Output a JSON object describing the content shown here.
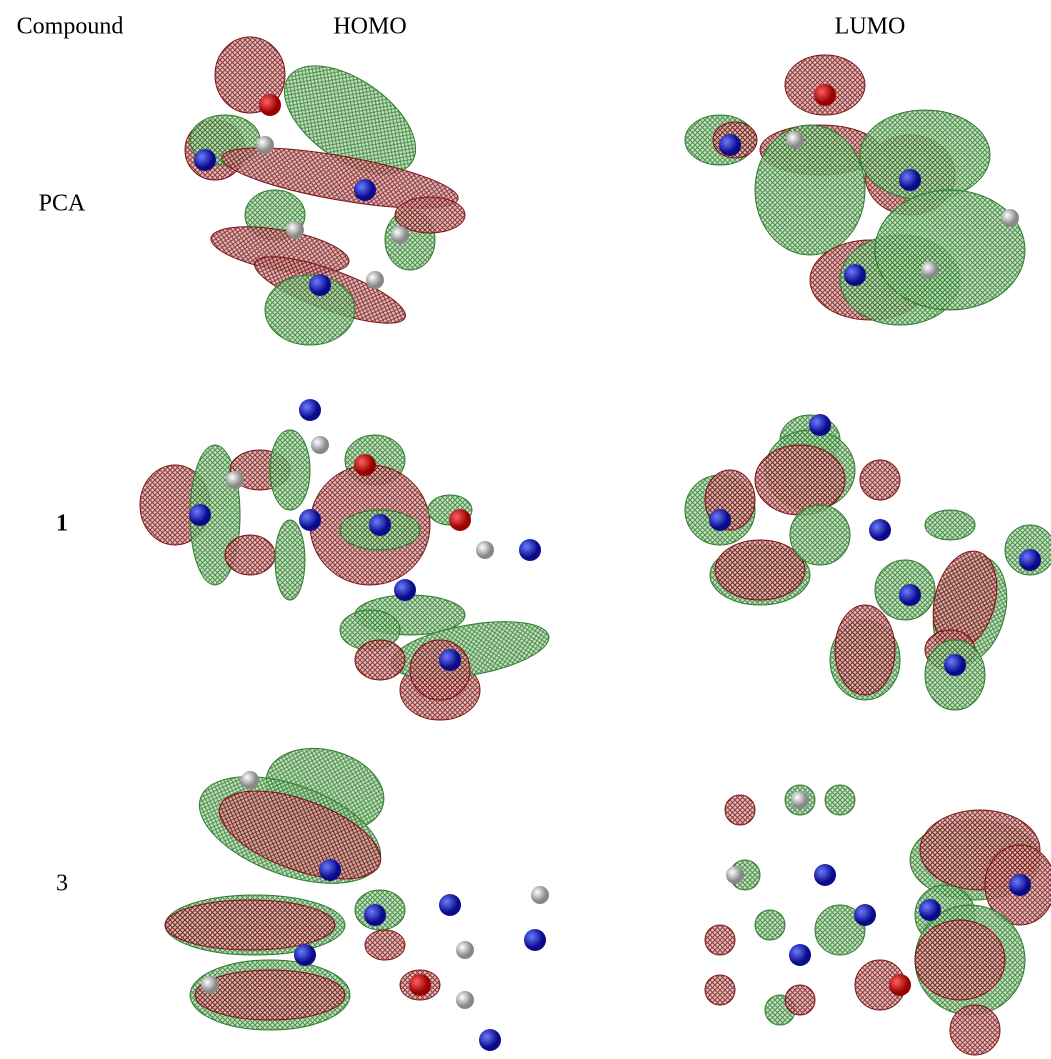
{
  "header": {
    "compound": "Compound",
    "homo": "HOMO",
    "lumo": "LUMO"
  },
  "rows": [
    {
      "compound": "PCA"
    },
    {
      "compound": "1"
    },
    {
      "compound": "3"
    }
  ]
}
